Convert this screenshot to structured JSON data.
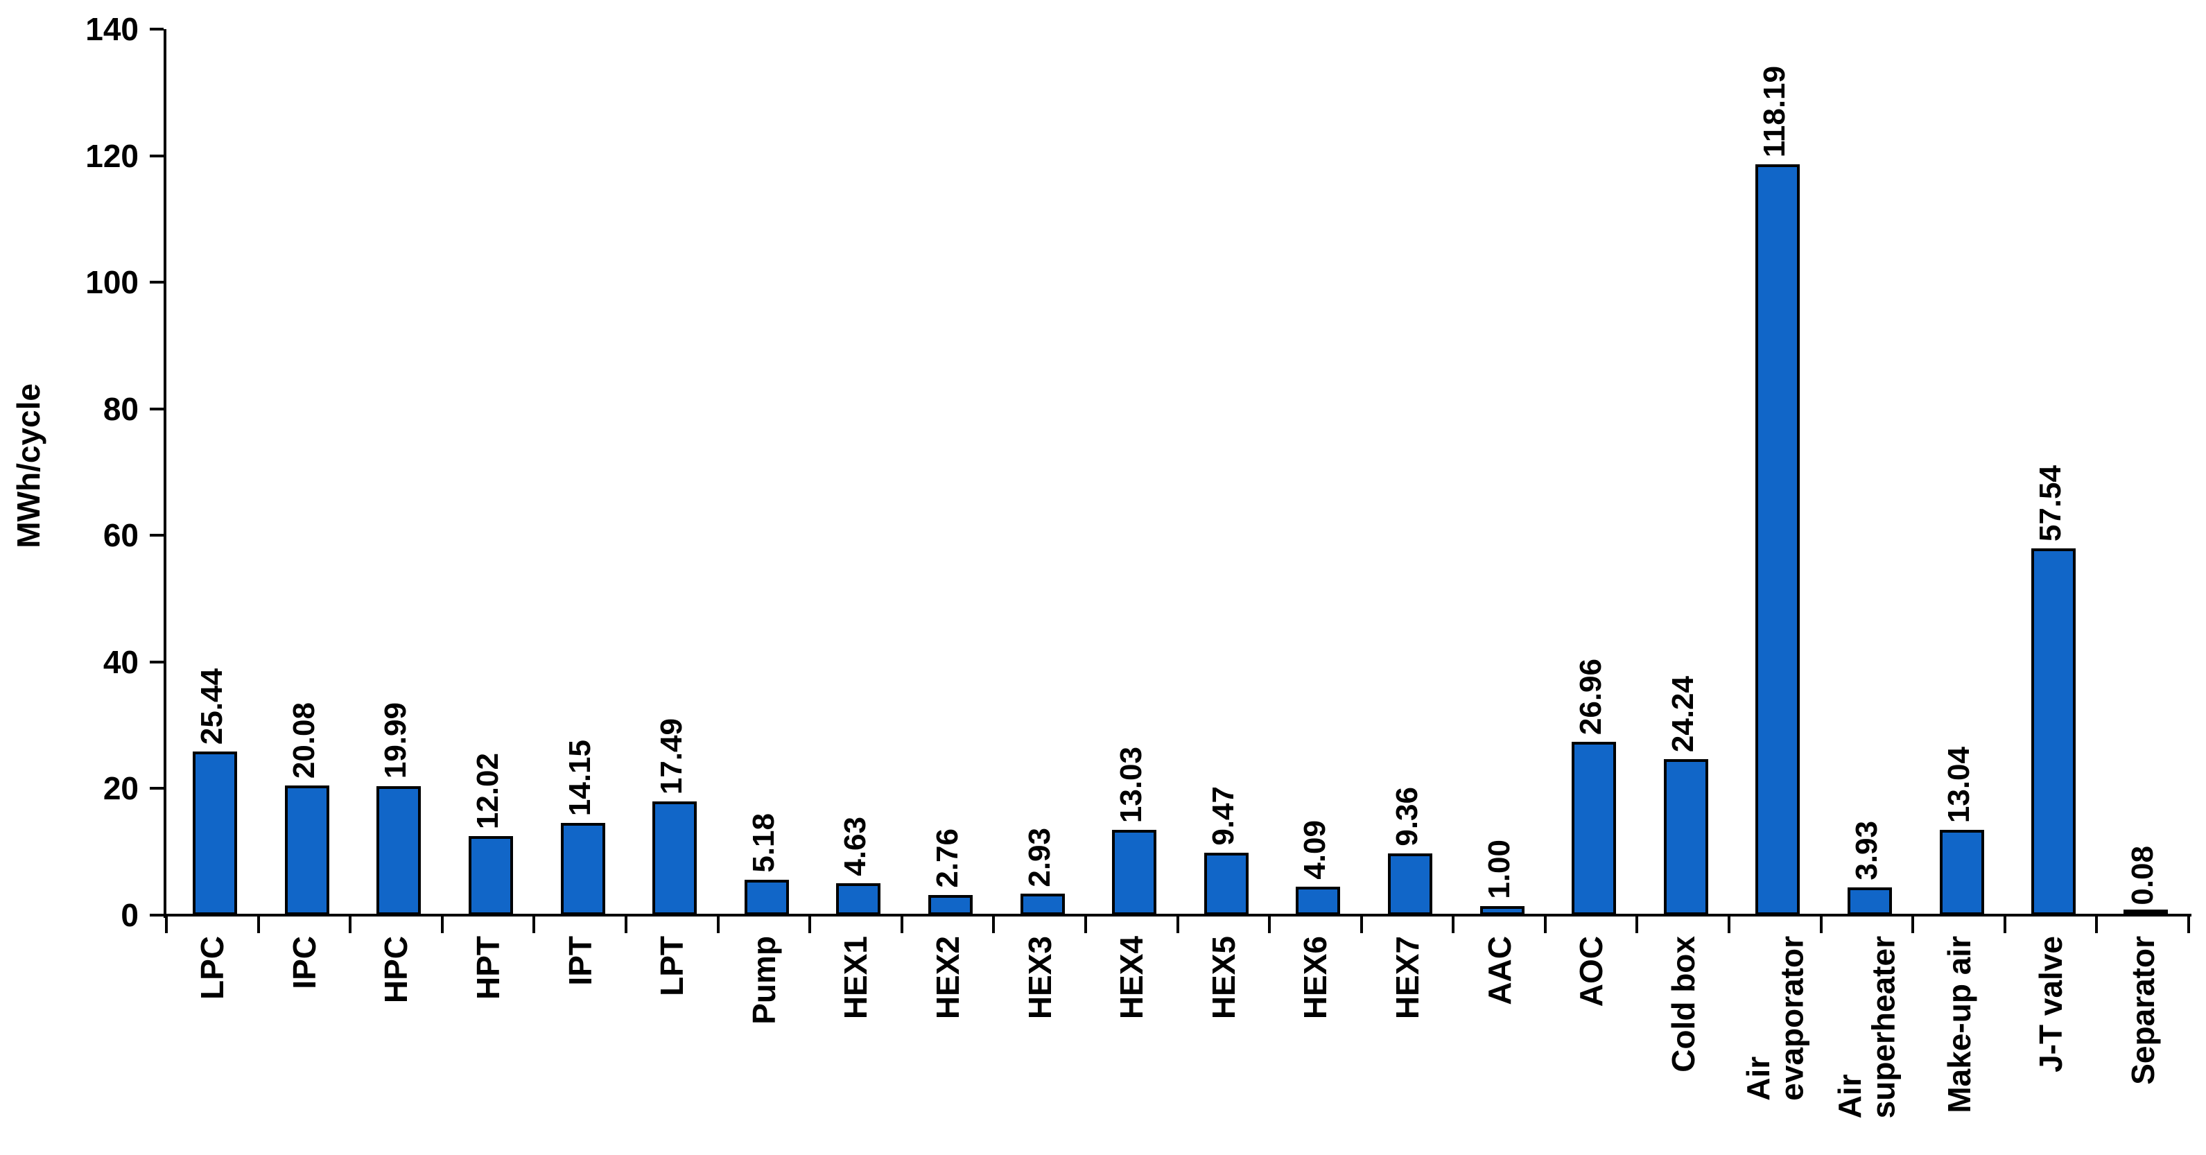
{
  "chart_data": {
    "type": "bar",
    "title": "",
    "xlabel": "",
    "ylabel": "MWh/cycle",
    "ylim": [
      0,
      140
    ],
    "yticks": [
      0,
      20,
      40,
      60,
      80,
      100,
      120,
      140
    ],
    "grid": false,
    "legend": "none",
    "bar_color": "#1166C8",
    "bar_border_color": "#000000",
    "categories": [
      "LPC",
      "IPC",
      "HPC",
      "HPT",
      "IPT",
      "LPT",
      "Pump",
      "HEX1",
      "HEX2",
      "HEX3",
      "HEX4",
      "HEX5",
      "HEX6",
      "HEX7",
      "AAC",
      "AOC",
      "Cold box",
      "Air\nevaporator",
      "Air\nsuperheater",
      "Make-up air",
      "J-T valve",
      "Separator"
    ],
    "values": [
      25.44,
      20.08,
      19.99,
      12.02,
      14.15,
      17.49,
      5.18,
      4.63,
      2.76,
      2.93,
      13.03,
      9.47,
      4.09,
      9.36,
      1.0,
      26.96,
      24.24,
      118.19,
      3.93,
      13.04,
      57.54,
      0.08
    ],
    "value_labels": [
      "25.44",
      "20.08",
      "19.99",
      "12.02",
      "14.15",
      "17.49",
      "5.18",
      "4.63",
      "2.76",
      "2.93",
      "13.03",
      "9.47",
      "4.09",
      "9.36",
      "1.00",
      "26.96",
      "24.24",
      "118.19",
      "3.93",
      "13.04",
      "57.54",
      "0.08"
    ]
  }
}
